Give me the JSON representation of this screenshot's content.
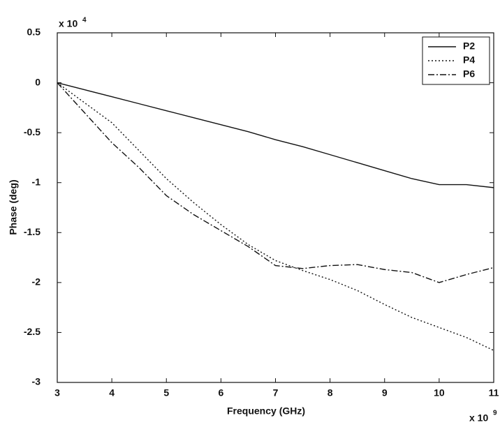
{
  "chart_data": {
    "type": "line",
    "x_label": "Frequency (GHz)",
    "y_label": "Phase (deg)",
    "x_multiplier": "x 10",
    "x_exponent": "9",
    "y_multiplier": "x 10",
    "y_exponent": "4",
    "x": [
      3,
      3.5,
      4,
      4.5,
      5,
      5.5,
      6,
      6.5,
      7,
      7.5,
      8,
      8.5,
      9,
      9.5,
      10,
      10.5,
      11
    ],
    "series": [
      {
        "name": "P2",
        "color": "#111111",
        "dash": "solid",
        "values": [
          0,
          -0.07,
          -0.14,
          -0.21,
          -0.28,
          -0.35,
          -0.42,
          -0.49,
          -0.57,
          -0.64,
          -0.72,
          -0.8,
          -0.88,
          -0.96,
          -1.02,
          -1.02,
          -1.05
        ]
      },
      {
        "name": "P4",
        "color": "#111111",
        "dash": "dotted",
        "values": [
          0,
          -0.2,
          -0.4,
          -0.68,
          -0.96,
          -1.2,
          -1.42,
          -1.62,
          -1.78,
          -1.88,
          -1.97,
          -2.08,
          -2.22,
          -2.35,
          -2.45,
          -2.55,
          -2.68
        ]
      },
      {
        "name": "P6",
        "color": "#111111",
        "dash": "dashdot",
        "values": [
          0,
          -0.3,
          -0.6,
          -0.85,
          -1.13,
          -1.32,
          -1.48,
          -1.64,
          -1.83,
          -1.86,
          -1.83,
          -1.82,
          -1.87,
          -1.9,
          -2.0,
          -1.92,
          -1.85
        ]
      }
    ],
    "xlim": [
      3,
      11
    ],
    "ylim": [
      -3,
      0.5
    ],
    "xticks": [
      3,
      4,
      5,
      6,
      7,
      8,
      9,
      10,
      11
    ],
    "yticks": [
      0.5,
      0,
      -0.5,
      -1,
      -1.5,
      -2,
      -2.5,
      -3
    ],
    "legend": "upper right",
    "grid": false
  }
}
